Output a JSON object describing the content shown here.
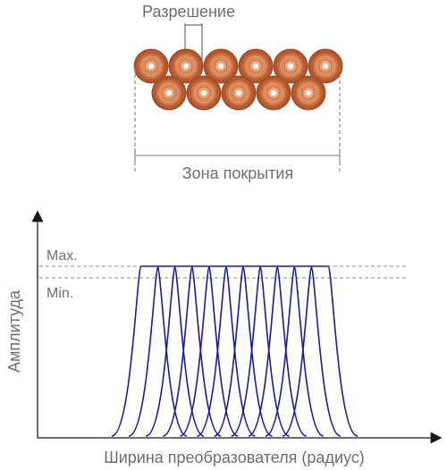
{
  "top": {
    "resolution_label": "Разрешение",
    "coverage_label": "Зона покрытия",
    "coil_rows": [
      6,
      5
    ],
    "coil_colors": {
      "outer": "#a6512c",
      "mid": "#d98356",
      "light": "#f0b48d",
      "hole": "#ffffff"
    }
  },
  "chart": {
    "max_label": "Max.",
    "min_label": "Min.",
    "y_axis_label": "Амплитуда",
    "x_axis_label": "Ширина преобразователя (радиус)",
    "curve_count": 11,
    "curve_color": "#1a1a9c",
    "axis_color": "#1a1a1a",
    "guide_color": "#8c8c8c"
  }
}
